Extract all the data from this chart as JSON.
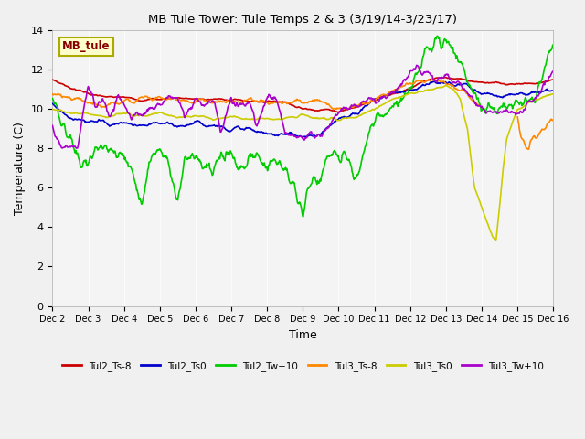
{
  "title": "MB Tule Tower: Tule Temps 2 & 3 (3/19/14-3/23/17)",
  "xlabel": "Time",
  "ylabel": "Temperature (C)",
  "ylim": [
    0,
    14
  ],
  "yticks": [
    0,
    2,
    4,
    6,
    8,
    10,
    12,
    14
  ],
  "xlim": [
    0,
    14
  ],
  "xtick_labels": [
    "Dec 2",
    "Dec 3",
    "Dec 4",
    "Dec 5",
    "Dec 6",
    "Dec 7",
    "Dec 8",
    "Dec 9",
    "Dec 10",
    "Dec 11",
    "Dec 12",
    "Dec 13",
    "Dec 14",
    "Dec 15",
    "Dec 16"
  ],
  "xtick_positions": [
    0,
    1,
    2,
    3,
    4,
    5,
    6,
    7,
    8,
    9,
    10,
    11,
    12,
    13,
    14
  ],
  "fig_bg": "#f0f0f0",
  "plot_bg": "#e8e8e8",
  "band_color": "#ffffff",
  "series": {
    "Tul2_Ts-8": {
      "color": "#cc0000",
      "lw": 1.2
    },
    "Tul2_Ts0": {
      "color": "#0000cc",
      "lw": 1.2
    },
    "Tul2_Tw+10": {
      "color": "#00cc00",
      "lw": 1.2
    },
    "Tul3_Ts-8": {
      "color": "#ff8800",
      "lw": 1.2
    },
    "Tul3_Ts0": {
      "color": "#cccc00",
      "lw": 1.2
    },
    "Tul3_Tw+10": {
      "color": "#aa00cc",
      "lw": 1.2
    }
  },
  "annotation": {
    "text": "MB_tule",
    "xf": 0.02,
    "yf": 0.93,
    "color": "#880000",
    "bg": "#ffffcc",
    "edge": "#aaaa00"
  }
}
